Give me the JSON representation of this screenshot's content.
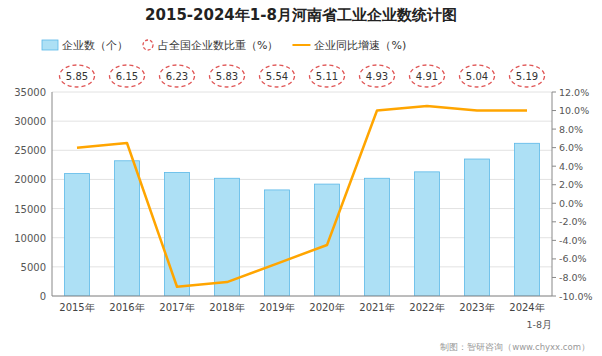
{
  "chart_data": {
    "type": "bar",
    "title": "2015-2024年1-8月河南省工业企业数统计图",
    "categories": [
      "2015年",
      "2016年",
      "2017年",
      "2018年",
      "2019年",
      "2020年",
      "2021年",
      "2022年",
      "2023年",
      "2024年"
    ],
    "series": [
      {
        "name": "企业数（个）",
        "type": "bar",
        "color": "#ADE0F5",
        "values": [
          21000,
          23200,
          21200,
          20200,
          18200,
          19200,
          20200,
          21300,
          23500,
          26200
        ]
      },
      {
        "name": "占全国企业数比重（%）",
        "type": "text",
        "color": "#E05555",
        "marker": "circle",
        "line_style": "dashed",
        "data_labels": true,
        "values": [
          5.85,
          6.15,
          6.23,
          5.83,
          5.54,
          5.11,
          4.93,
          4.91,
          5.04,
          5.19
        ]
      },
      {
        "name": "企业同比增速（%)",
        "type": "line",
        "axis": "y2",
        "color": "#FFA500",
        "values": [
          6.0,
          6.5,
          -9.0,
          -8.5,
          -6.5,
          -4.5,
          10.0,
          10.5,
          10.0,
          10.0
        ]
      }
    ],
    "ylim": [
      0,
      35000
    ],
    "yticks": [
      0,
      5000,
      10000,
      15000,
      20000,
      25000,
      30000,
      35000
    ],
    "y2lim": [
      -10.0,
      12.0
    ],
    "y2ticks": [
      {
        "value": -10.0,
        "label": "-10.0%"
      },
      {
        "value": -8.0,
        "label": "-8.0%"
      },
      {
        "value": -6.0,
        "label": "-6.0%"
      },
      {
        "value": -4.0,
        "label": "-4.0%"
      },
      {
        "value": -2.0,
        "label": "-2.0%"
      },
      {
        "value": 0.0,
        "label": "0.0%"
      },
      {
        "value": 2.0,
        "label": "2.0%"
      },
      {
        "value": 4.0,
        "label": "4.0%"
      },
      {
        "value": 6.0,
        "label": "6.0%"
      },
      {
        "value": 8.0,
        "label": "8.0%"
      },
      {
        "value": 10.0,
        "label": "10.0%"
      },
      {
        "value": 12.0,
        "label": "12.0%"
      }
    ],
    "grid": true,
    "legend": "top-left",
    "annotations": [
      "制图：智研咨询（www.chyxx.com）",
      "1-8月"
    ]
  }
}
